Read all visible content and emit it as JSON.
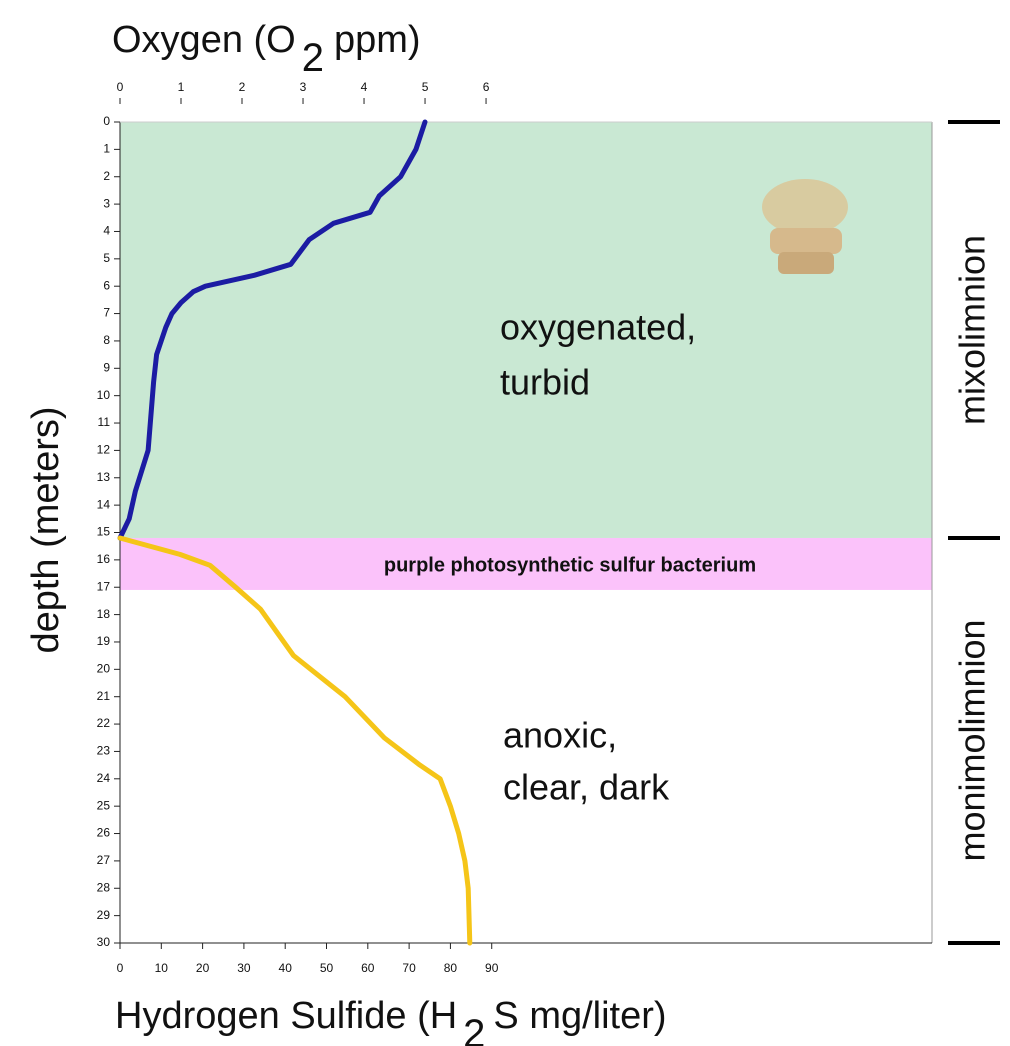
{
  "chart_data": {
    "type": "line",
    "x2_label": [
      "Oxygen (O",
      "2",
      "ppm)"
    ],
    "x_label": [
      "Hydrogen Sulfide (H",
      "2",
      "S mg/liter)"
    ],
    "y_label": "depth (meters)",
    "ylim": [
      0,
      30
    ],
    "y_inverted": true,
    "yticks": [
      0,
      1,
      2,
      3,
      4,
      5,
      6,
      7,
      8,
      9,
      10,
      11,
      12,
      13,
      14,
      15,
      16,
      17,
      18,
      19,
      20,
      21,
      22,
      23,
      24,
      25,
      26,
      27,
      28,
      29,
      30
    ],
    "xlim": [
      0,
      196.6
    ],
    "xticks": [
      0,
      10,
      20,
      30,
      40,
      50,
      60,
      70,
      80,
      90
    ],
    "x2lim": [
      0,
      13.31
    ],
    "x2ticks": [
      0,
      1,
      2,
      3,
      4,
      5,
      6
    ],
    "zones": [
      {
        "from": 0,
        "to": 15.2,
        "color": "#c9e8d3",
        "label": [
          "oxygenated,",
          "turbid"
        ]
      },
      {
        "from": 15.2,
        "to": 17.1,
        "color": "#fbc2fa",
        "label": [
          "purple photosynthetic sulfur bacterium"
        ]
      },
      {
        "from": 17.1,
        "to": 30,
        "color": "#ffffff",
        "label": [
          "anoxic,",
          "clear, dark"
        ]
      }
    ],
    "layers": [
      {
        "label": "mixolimnion",
        "from": 0,
        "to": 15.2
      },
      {
        "label": "monimolimnion",
        "from": 15.2,
        "to": 30
      }
    ],
    "series": [
      {
        "color": "#1c1ca3",
        "axis": "x2",
        "depth": [
          0,
          1,
          2,
          2.7,
          3.3,
          3.7,
          4.3,
          5.2,
          5.6,
          6,
          6.2,
          6.6,
          7,
          7.5,
          8.5,
          9.5,
          12,
          13.5,
          14.5,
          15.2
        ],
        "values": [
          5.0,
          4.85,
          4.6,
          4.25,
          4.1,
          3.5,
          3.1,
          2.8,
          2.2,
          1.4,
          1.2,
          1.0,
          0.85,
          0.75,
          0.6,
          0.55,
          0.46,
          0.25,
          0.15,
          0
        ]
      },
      {
        "color": "#f5c518",
        "axis": "x",
        "depth": [
          15.2,
          15.8,
          16.2,
          17,
          17.8,
          19.5,
          21,
          22.5,
          23.5,
          24,
          25,
          26,
          27,
          28,
          30
        ],
        "values": [
          0,
          14.5,
          21.8,
          28,
          34,
          42,
          54.5,
          64,
          72.6,
          77.5,
          80,
          82,
          83.5,
          84.3,
          84.7
        ]
      }
    ]
  }
}
